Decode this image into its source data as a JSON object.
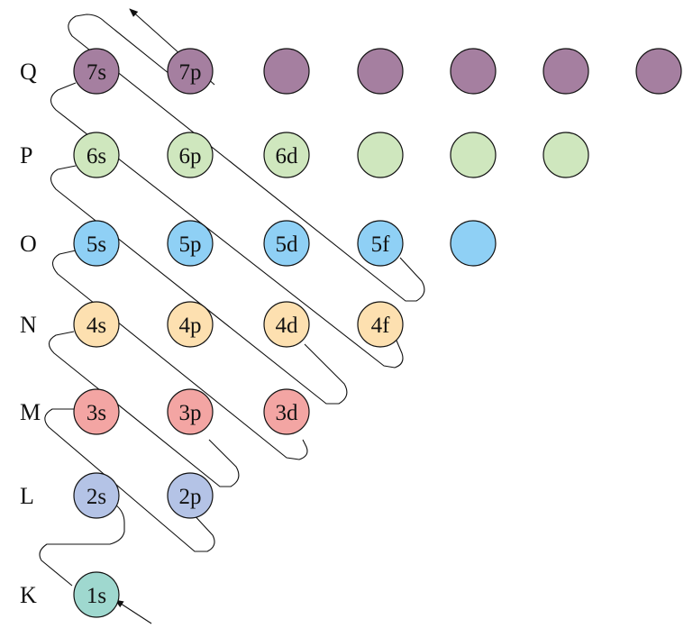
{
  "colors": {
    "K": "#9fd8cf",
    "L": "#b4c3e6",
    "M": "#f3a5a3",
    "N": "#fde0b0",
    "O": "#8fd0f5",
    "P": "#cfe7be",
    "Q": "#a57fa0"
  },
  "shells": [
    {
      "name": "Q",
      "orbitals": [
        "7s",
        "7p",
        "",
        "",
        "",
        "",
        ""
      ]
    },
    {
      "name": "P",
      "orbitals": [
        "6s",
        "6p",
        "6d",
        "",
        "",
        ""
      ]
    },
    {
      "name": "O",
      "orbitals": [
        "5s",
        "5p",
        "5d",
        "5f",
        ""
      ]
    },
    {
      "name": "N",
      "orbitals": [
        "4s",
        "4p",
        "4d",
        "4f"
      ]
    },
    {
      "name": "M",
      "orbitals": [
        "3s",
        "3p",
        "3d"
      ]
    },
    {
      "name": "L",
      "orbitals": [
        "2s",
        "2p"
      ]
    },
    {
      "name": "K",
      "orbitals": [
        "1s"
      ]
    }
  ]
}
